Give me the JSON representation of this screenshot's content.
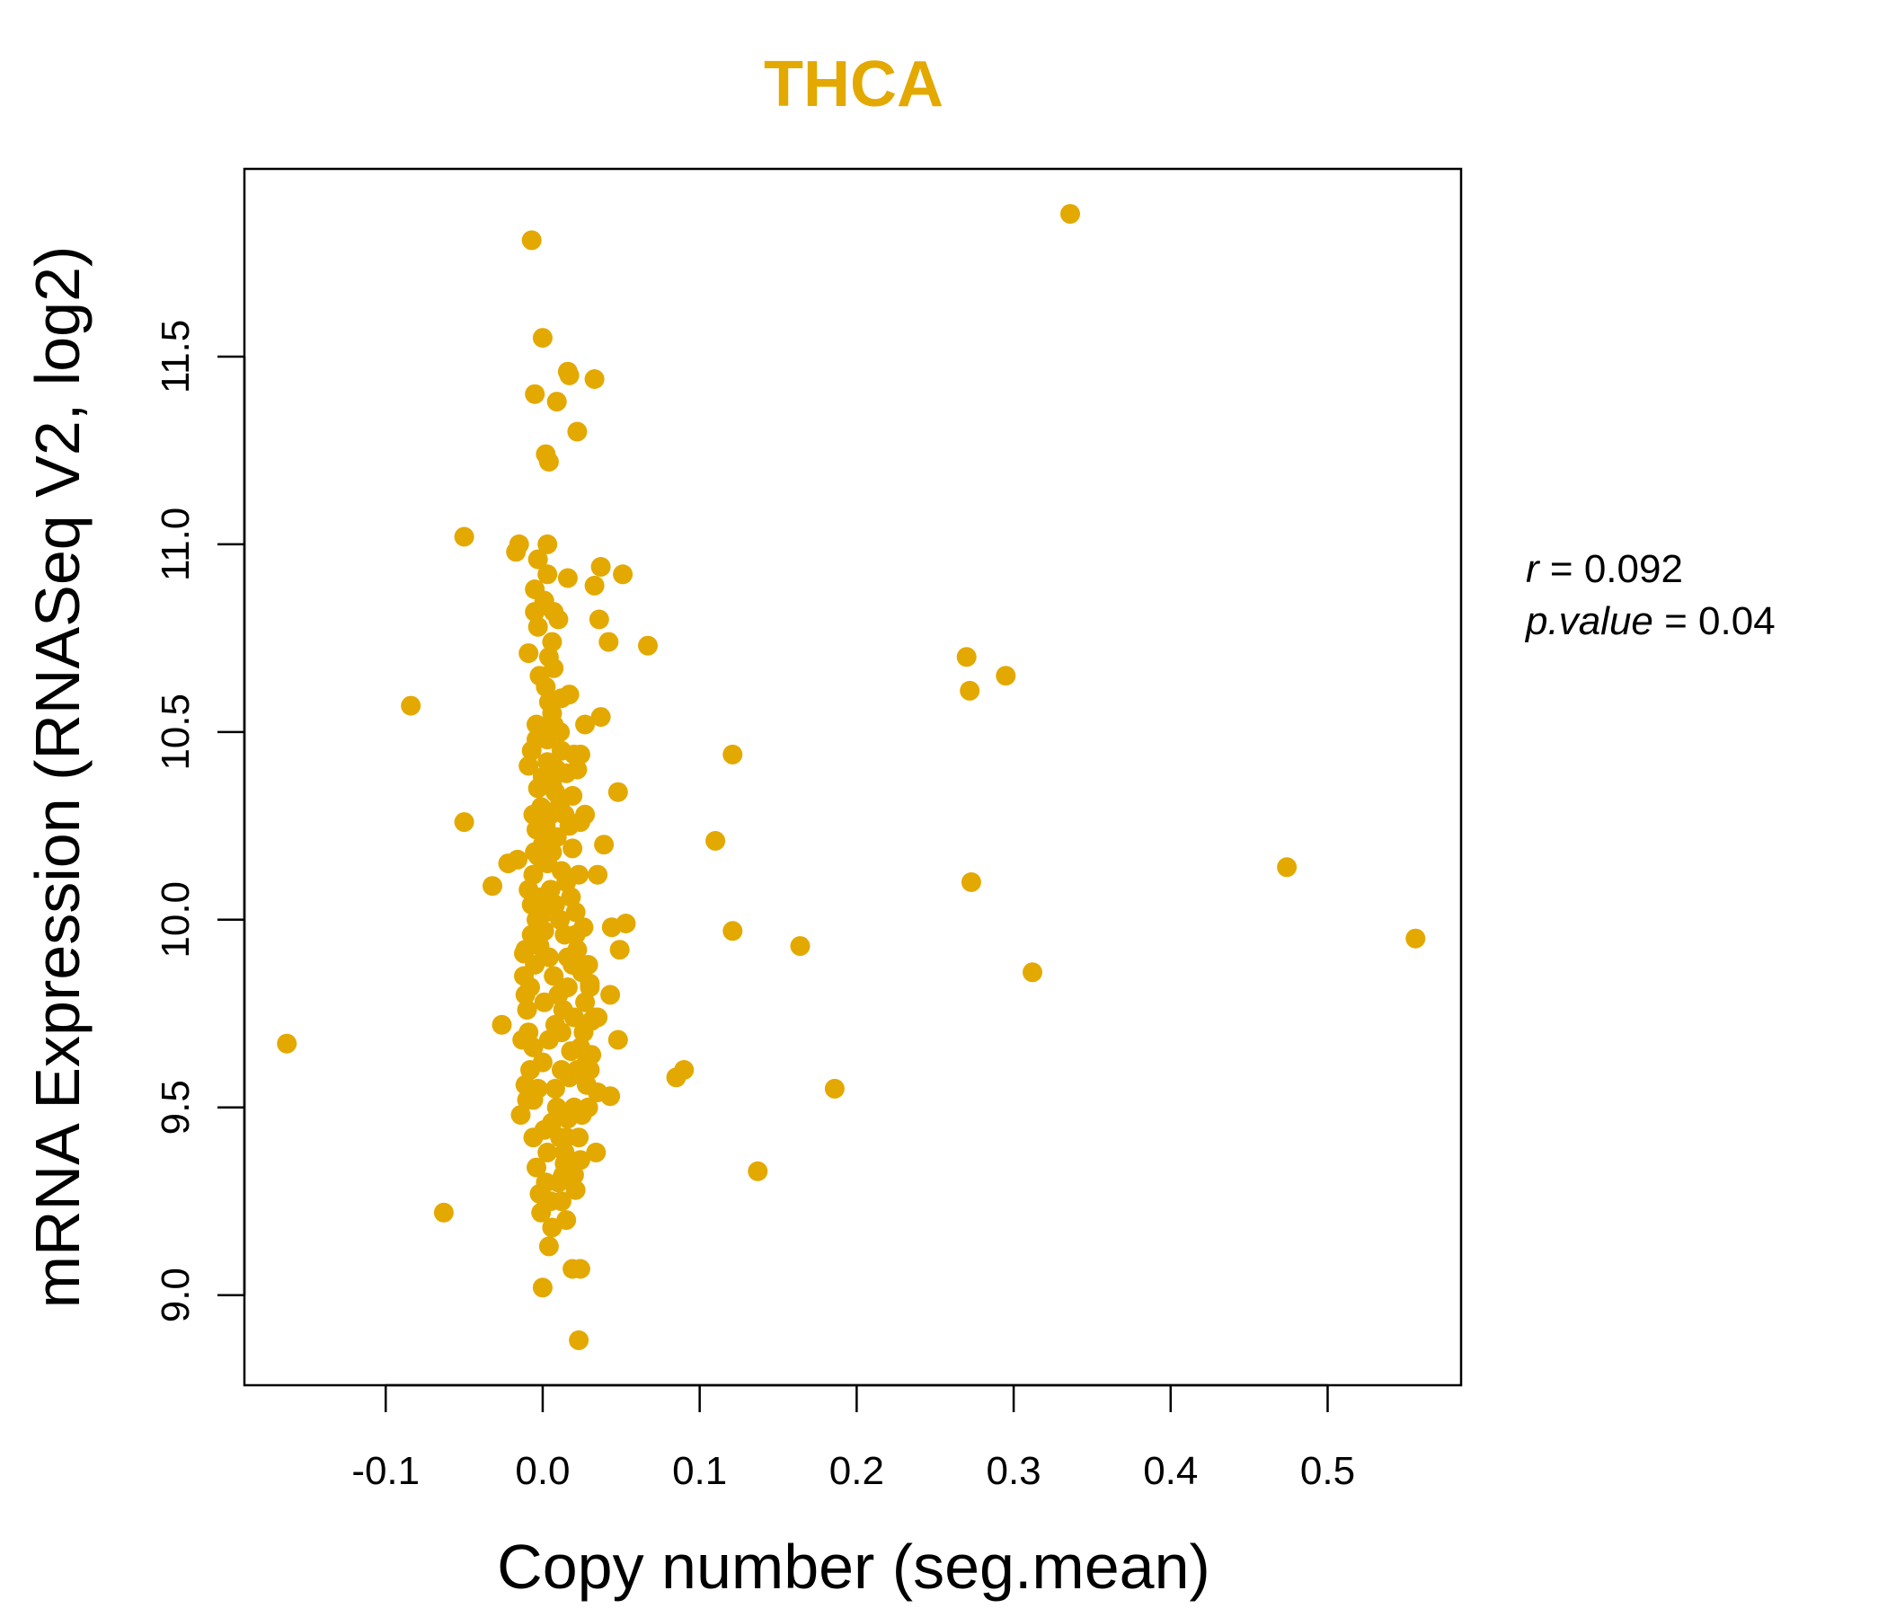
{
  "chart_data": {
    "type": "scatter",
    "title": "THCA",
    "xlabel": "Copy number (seg.mean)",
    "ylabel": "mRNA Expression (RNASeq V2, log2)",
    "xlim": [
      -0.19,
      0.585
    ],
    "ylim": [
      8.76,
      12.0
    ],
    "x_ticks": [
      -0.1,
      0.0,
      0.1,
      0.2,
      0.3,
      0.4,
      0.5
    ],
    "x_tick_labels": [
      "-0.1",
      "0.0",
      "0.1",
      "0.2",
      "0.3",
      "0.4",
      "0.5"
    ],
    "y_ticks": [
      9.0,
      9.5,
      10.0,
      10.5,
      11.0,
      11.5
    ],
    "y_tick_labels": [
      "9.0",
      "9.5",
      "10.0",
      "10.5",
      "11.0",
      "11.5"
    ],
    "point_color": "#E3A900",
    "annotation": {
      "r_label": "r",
      "r_value": "0.092",
      "p_label": "p.value",
      "p_value": "0.04"
    },
    "points": [
      [
        -0.163,
        9.67
      ],
      [
        -0.084,
        10.57
      ],
      [
        -0.063,
        9.22
      ],
      [
        -0.05,
        11.02
      ],
      [
        -0.05,
        10.26
      ],
      [
        -0.032,
        10.09
      ],
      [
        -0.026,
        9.72
      ],
      [
        -0.022,
        10.15
      ],
      [
        -0.016,
        10.16
      ],
      [
        -0.017,
        10.98
      ],
      [
        -0.015,
        11.0
      ],
      [
        -0.014,
        9.48
      ],
      [
        -0.012,
        9.91
      ],
      [
        -0.011,
        9.56
      ],
      [
        -0.007,
        11.81
      ],
      [
        -0.005,
        11.4
      ],
      [
        -0.005,
        10.88
      ],
      [
        -0.004,
        10.52
      ],
      [
        -0.003,
        10.78
      ],
      [
        0.0,
        11.55
      ],
      [
        0.002,
        11.24
      ],
      [
        0.004,
        11.22
      ],
      [
        0.003,
        11.0
      ],
      [
        0.003,
        10.92
      ],
      [
        0.009,
        11.38
      ],
      [
        0.016,
        11.46
      ],
      [
        0.017,
        11.45
      ],
      [
        0.022,
        11.3
      ],
      [
        0.033,
        11.44
      ],
      [
        0.016,
        10.91
      ],
      [
        0.037,
        10.94
      ],
      [
        0.051,
        10.92
      ],
      [
        0.033,
        10.89
      ],
      [
        0.036,
        10.8
      ],
      [
        0.042,
        10.74
      ],
      [
        0.067,
        10.73
      ],
      [
        0.007,
        10.67
      ],
      [
        0.01,
        10.8
      ],
      [
        0.017,
        10.6
      ],
      [
        0.012,
        10.59
      ],
      [
        0.027,
        10.52
      ],
      [
        0.037,
        10.54
      ],
      [
        0.024,
        10.44
      ],
      [
        0.048,
        10.34
      ],
      [
        0.027,
        10.28
      ],
      [
        0.039,
        10.2
      ],
      [
        0.035,
        10.12
      ],
      [
        0.044,
        9.98
      ],
      [
        0.053,
        9.99
      ],
      [
        0.049,
        9.92
      ],
      [
        0.03,
        9.83
      ],
      [
        0.043,
        9.8
      ],
      [
        0.048,
        9.68
      ],
      [
        0.035,
        9.74
      ],
      [
        0.031,
        9.73
      ],
      [
        0.03,
        9.6
      ],
      [
        0.035,
        9.54
      ],
      [
        0.043,
        9.53
      ],
      [
        0.034,
        9.38
      ],
      [
        0.024,
        9.36
      ],
      [
        0.013,
        9.32
      ],
      [
        0.021,
        9.28
      ],
      [
        0.015,
        9.2
      ],
      [
        0.004,
        9.13
      ],
      [
        0.019,
        9.07
      ],
      [
        0.024,
        9.07
      ],
      [
        0.0,
        9.02
      ],
      [
        0.023,
        8.88
      ],
      [
        0.11,
        10.21
      ],
      [
        0.121,
        10.44
      ],
      [
        0.121,
        9.97
      ],
      [
        0.164,
        9.93
      ],
      [
        0.085,
        9.58
      ],
      [
        0.09,
        9.6
      ],
      [
        0.137,
        9.33
      ],
      [
        0.186,
        9.55
      ],
      [
        0.27,
        10.7
      ],
      [
        0.272,
        10.61
      ],
      [
        0.295,
        10.65
      ],
      [
        0.273,
        10.1
      ],
      [
        0.312,
        9.86
      ],
      [
        0.336,
        11.88
      ],
      [
        0.474,
        10.14
      ],
      [
        0.556,
        9.95
      ],
      [
        -0.012,
        9.85
      ],
      [
        -0.01,
        9.76
      ],
      [
        -0.008,
        9.6
      ],
      [
        -0.006,
        9.42
      ],
      [
        -0.004,
        9.34
      ],
      [
        -0.002,
        9.27
      ],
      [
        -0.001,
        9.22
      ],
      [
        0.002,
        9.3
      ],
      [
        0.005,
        9.25
      ],
      [
        0.003,
        9.38
      ],
      [
        0.006,
        9.46
      ],
      [
        0.009,
        9.5
      ],
      [
        0.011,
        9.42
      ],
      [
        0.014,
        9.35
      ],
      [
        0.016,
        9.47
      ],
      [
        0.02,
        9.5
      ],
      [
        0.025,
        9.48
      ],
      [
        0.028,
        9.56
      ],
      [
        0.022,
        9.6
      ],
      [
        0.018,
        9.65
      ],
      [
        0.012,
        9.7
      ],
      [
        0.008,
        9.72
      ],
      [
        0.004,
        9.68
      ],
      [
        0.0,
        9.62
      ],
      [
        -0.003,
        9.55
      ],
      [
        -0.006,
        9.66
      ],
      [
        -0.009,
        9.7
      ],
      [
        -0.011,
        9.8
      ],
      [
        -0.008,
        9.82
      ],
      [
        -0.005,
        9.88
      ],
      [
        -0.002,
        9.93
      ],
      [
        0.001,
        9.97
      ],
      [
        0.004,
        9.9
      ],
      [
        0.007,
        9.85
      ],
      [
        0.01,
        9.8
      ],
      [
        0.013,
        9.76
      ],
      [
        0.016,
        9.82
      ],
      [
        0.019,
        9.88
      ],
      [
        0.022,
        9.92
      ],
      [
        0.025,
        9.86
      ],
      [
        0.027,
        9.78
      ],
      [
        0.02,
        9.74
      ],
      [
        0.014,
        9.96
      ],
      [
        0.011,
        10.0
      ],
      [
        0.008,
        10.04
      ],
      [
        0.005,
        10.08
      ],
      [
        0.002,
        10.02
      ],
      [
        -0.001,
        10.06
      ],
      [
        -0.004,
        10.0
      ],
      [
        -0.007,
        10.04
      ],
      [
        -0.009,
        10.08
      ],
      [
        -0.006,
        10.12
      ],
      [
        -0.003,
        10.17
      ],
      [
        0.0,
        10.2
      ],
      [
        0.003,
        10.15
      ],
      [
        0.006,
        10.18
      ],
      [
        0.009,
        10.22
      ],
      [
        0.012,
        10.13
      ],
      [
        0.015,
        10.1
      ],
      [
        0.018,
        10.06
      ],
      [
        0.021,
        10.02
      ],
      [
        0.017,
        10.25
      ],
      [
        0.014,
        10.28
      ],
      [
        0.011,
        10.31
      ],
      [
        0.008,
        10.34
      ],
      [
        0.005,
        10.28
      ],
      [
        0.002,
        10.25
      ],
      [
        -0.001,
        10.3
      ],
      [
        -0.004,
        10.24
      ],
      [
        -0.006,
        10.28
      ],
      [
        -0.003,
        10.35
      ],
      [
        0.0,
        10.38
      ],
      [
        0.003,
        10.42
      ],
      [
        0.006,
        10.36
      ],
      [
        0.009,
        10.4
      ],
      [
        0.012,
        10.45
      ],
      [
        0.015,
        10.39
      ],
      [
        0.019,
        10.33
      ],
      [
        0.022,
        10.4
      ],
      [
        0.02,
        10.44
      ],
      [
        -0.009,
        10.41
      ],
      [
        -0.007,
        10.45
      ],
      [
        -0.004,
        10.48
      ],
      [
        -0.001,
        10.5
      ],
      [
        0.003,
        10.48
      ],
      [
        0.007,
        10.52
      ],
      [
        0.011,
        10.5
      ],
      [
        0.004,
        10.58
      ],
      [
        0.002,
        10.62
      ],
      [
        -0.002,
        10.65
      ],
      [
        0.004,
        10.7
      ],
      [
        0.006,
        10.74
      ],
      [
        -0.009,
        10.71
      ],
      [
        -0.005,
        10.82
      ],
      [
        0.001,
        10.85
      ],
      [
        0.007,
        10.82
      ],
      [
        -0.003,
        10.96
      ],
      [
        0.006,
        10.55
      ],
      [
        -0.011,
        9.92
      ],
      [
        -0.013,
        9.68
      ],
      [
        -0.01,
        9.52
      ],
      [
        0.015,
        9.42
      ],
      [
        0.023,
        9.42
      ],
      [
        0.024,
        9.66
      ],
      [
        0.026,
        9.7
      ],
      [
        0.029,
        9.88
      ],
      [
        0.026,
        9.98
      ],
      [
        0.023,
        10.12
      ],
      [
        0.019,
        10.19
      ],
      [
        0.024,
        10.26
      ],
      [
        -0.006,
        9.52
      ],
      [
        0.001,
        9.44
      ],
      [
        0.008,
        9.55
      ],
      [
        0.012,
        9.6
      ],
      [
        0.017,
        9.58
      ],
      [
        0.028,
        9.62
      ],
      [
        0.031,
        9.64
      ],
      [
        0.029,
        9.5
      ],
      [
        0.03,
        9.82
      ],
      [
        0.033,
        9.74
      ],
      [
        0.014,
        9.38
      ],
      [
        0.01,
        9.3
      ],
      [
        0.006,
        9.18
      ],
      [
        0.012,
        9.25
      ],
      [
        0.02,
        9.32
      ],
      [
        0.001,
        9.78
      ],
      [
        0.016,
        9.9
      ],
      [
        0.021,
        9.96
      ],
      [
        -0.007,
        9.96
      ],
      [
        -0.005,
        10.18
      ]
    ]
  }
}
